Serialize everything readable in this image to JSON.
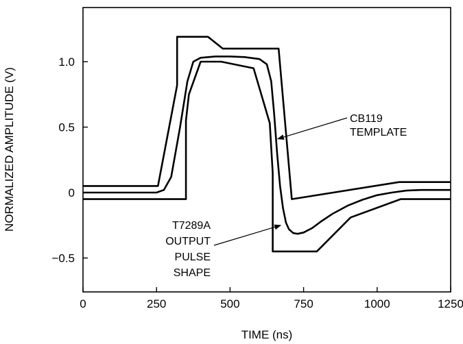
{
  "chart_data": {
    "type": "line",
    "title": "",
    "xlabel": "TIME (ns)",
    "ylabel": "NORMALIZED AMPLITUDE (V)",
    "xlim": [
      0,
      1250
    ],
    "ylim": [
      -0.75,
      1.4
    ],
    "grid": false,
    "x_ticks": [
      0,
      250,
      500,
      750,
      1000,
      1250
    ],
    "x_tick_labels": [
      "0",
      "250",
      "500",
      "750",
      "1000",
      "1250"
    ],
    "y_ticks": [
      1.0,
      0.5,
      0,
      -0.5
    ],
    "y_tick_labels": [
      "1.0",
      "0.5",
      "0",
      "−0.5"
    ],
    "series": [
      {
        "key": "template-upper",
        "x": [
          0,
          255,
          320,
          320,
          425,
          475,
          665,
          710,
          1075,
          1250
        ],
        "y": [
          0.05,
          0.05,
          0.82,
          1.19,
          1.19,
          1.1,
          1.1,
          -0.05,
          0.08,
          0.08
        ]
      },
      {
        "key": "template-lower",
        "x": [
          0,
          350,
          350,
          360,
          400,
          470,
          580,
          635,
          645,
          645,
          795,
          910,
          1080,
          1250
        ],
        "y": [
          -0.05,
          -0.05,
          0.55,
          0.75,
          1.0,
          1.0,
          0.95,
          0.53,
          0.15,
          -0.45,
          -0.45,
          -0.19,
          -0.05,
          -0.05
        ]
      },
      {
        "key": "pulse",
        "x": [
          0,
          250,
          275,
          300,
          330,
          355,
          375,
          400,
          450,
          500,
          550,
          600,
          625,
          640,
          650,
          660,
          670,
          680,
          690,
          700,
          715,
          730,
          750,
          780,
          810,
          850,
          900,
          950,
          1000,
          1050,
          1100,
          1150,
          1200,
          1250
        ],
        "y": [
          0,
          0,
          0.02,
          0.12,
          0.5,
          0.85,
          1.0,
          1.03,
          1.04,
          1.04,
          1.035,
          1.02,
          0.98,
          0.85,
          0.6,
          0.3,
          0.05,
          -0.12,
          -0.23,
          -0.28,
          -0.31,
          -0.315,
          -0.305,
          -0.27,
          -0.22,
          -0.16,
          -0.1,
          -0.055,
          -0.02,
          0,
          0.015,
          0.02,
          0.02,
          0.02
        ]
      }
    ],
    "annotations": [
      {
        "lines": [
          "CB119",
          "TEMPLATE"
        ],
        "arrow_to": [
          662,
          0.41
        ]
      },
      {
        "lines": [
          "T7289A",
          "OUTPUT",
          "PULSE",
          "SHAPE"
        ],
        "arrow_to": [
          672,
          -0.25
        ]
      }
    ]
  }
}
